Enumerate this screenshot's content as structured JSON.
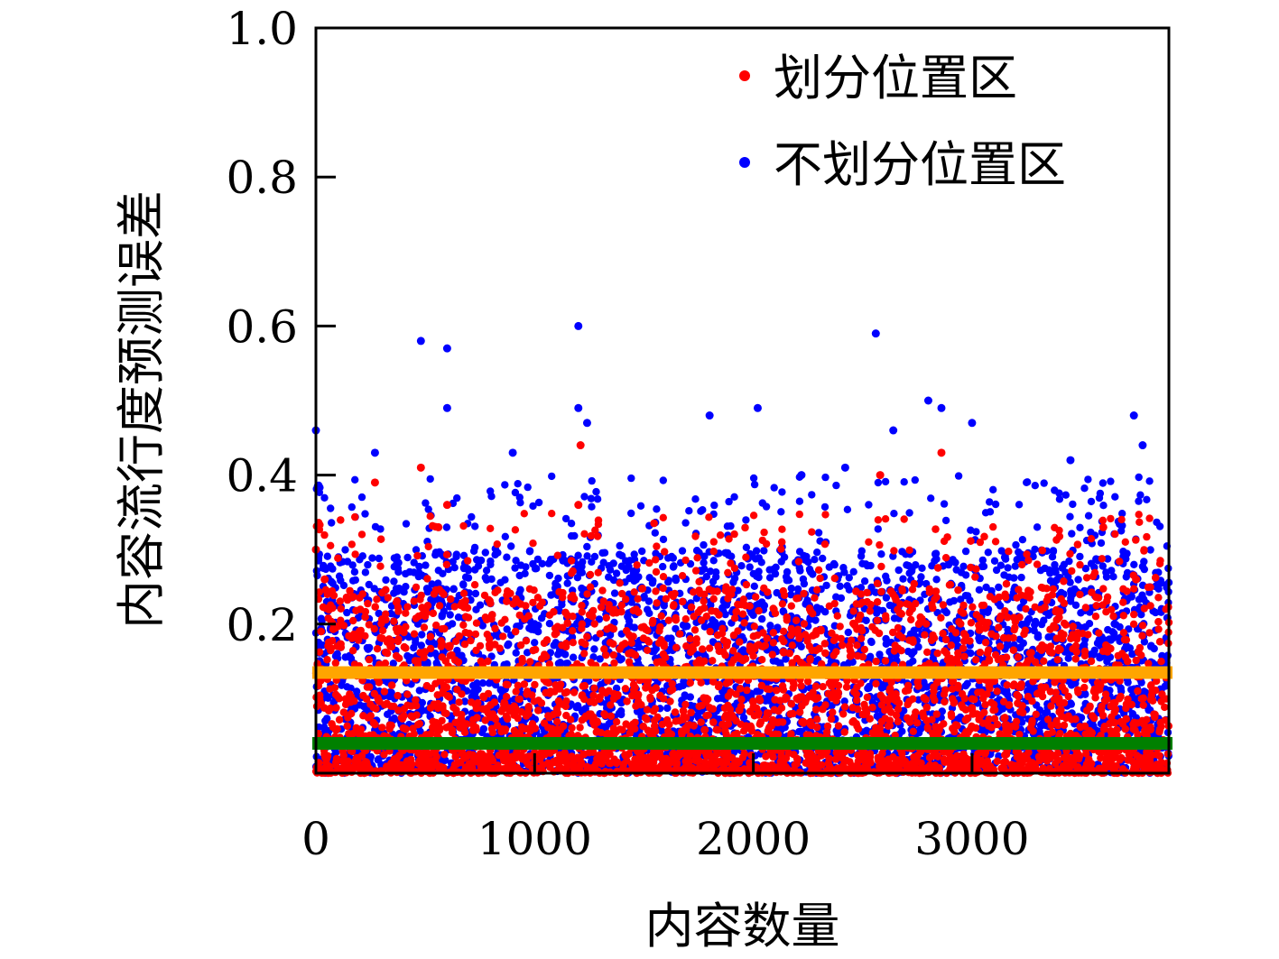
{
  "chart_data": {
    "type": "scatter",
    "xlabel": "内容数量",
    "ylabel": "内容流行度预测误差",
    "xlim": [
      0,
      3900
    ],
    "ylim": [
      0,
      1.0
    ],
    "x_ticks": [
      0,
      1000,
      2000,
      3000
    ],
    "x_tick_labels": [
      "0",
      "1000",
      "2000",
      "3000"
    ],
    "y_ticks": [
      0.2,
      0.4,
      0.6,
      0.8,
      1.0
    ],
    "y_tick_labels": [
      "0.2",
      "0.4",
      "0.6",
      "0.8",
      "1.0"
    ],
    "legend_position": "top-right",
    "grid": false,
    "series": [
      {
        "name": "划分位置区",
        "color": "#ff0000",
        "n_points": 3900,
        "bulk_range": [
          0,
          0.25
        ],
        "outliers": [
          {
            "x": 0,
            "y": 0.3
          },
          {
            "x": 40,
            "y": 0.26
          },
          {
            "x": 270,
            "y": 0.39
          },
          {
            "x": 480,
            "y": 0.41
          },
          {
            "x": 560,
            "y": 0.33
          },
          {
            "x": 600,
            "y": 0.36
          },
          {
            "x": 1210,
            "y": 0.44
          },
          {
            "x": 1200,
            "y": 0.36
          },
          {
            "x": 2580,
            "y": 0.4
          },
          {
            "x": 2860,
            "y": 0.43
          },
          {
            "x": 3600,
            "y": 0.33
          },
          {
            "x": 3750,
            "y": 0.26
          }
        ],
        "mean_line": {
          "y": 0.04,
          "color": "#008000"
        }
      },
      {
        "name": "不划分位置区",
        "color": "#0000ff",
        "n_points": 3900,
        "bulk_range": [
          0,
          0.3
        ],
        "outliers": [
          {
            "x": 0,
            "y": 0.46
          },
          {
            "x": 480,
            "y": 0.58
          },
          {
            "x": 600,
            "y": 0.57
          },
          {
            "x": 600,
            "y": 0.49
          },
          {
            "x": 1200,
            "y": 0.6
          },
          {
            "x": 1200,
            "y": 0.49
          },
          {
            "x": 1240,
            "y": 0.47
          },
          {
            "x": 1800,
            "y": 0.48
          },
          {
            "x": 2020,
            "y": 0.49
          },
          {
            "x": 2560,
            "y": 0.59
          },
          {
            "x": 2640,
            "y": 0.46
          },
          {
            "x": 2800,
            "y": 0.5
          },
          {
            "x": 2860,
            "y": 0.49
          },
          {
            "x": 3000,
            "y": 0.47
          },
          {
            "x": 3740,
            "y": 0.48
          },
          {
            "x": 3780,
            "y": 0.44
          },
          {
            "x": 270,
            "y": 0.43
          },
          {
            "x": 900,
            "y": 0.43
          },
          {
            "x": 2220,
            "y": 0.4
          },
          {
            "x": 2420,
            "y": 0.41
          },
          {
            "x": 3450,
            "y": 0.42
          }
        ],
        "mean_line": {
          "y": 0.135,
          "color": "#ffa500"
        }
      }
    ]
  }
}
